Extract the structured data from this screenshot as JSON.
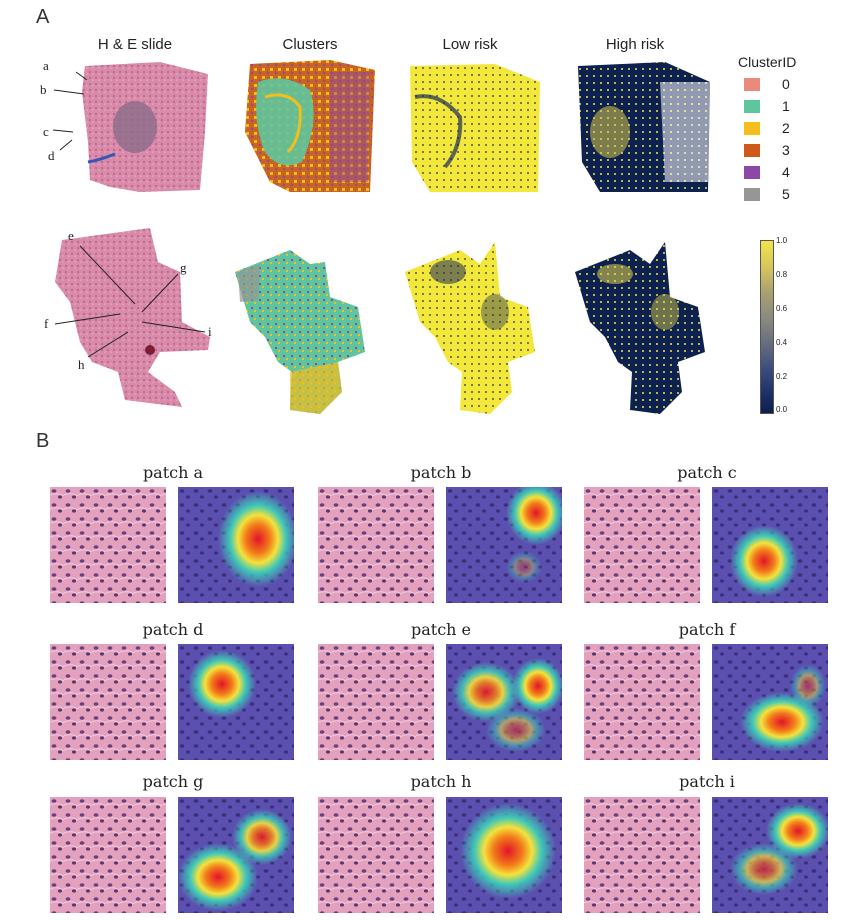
{
  "figure": {
    "panel_a_label": "A",
    "panel_b_label": "B",
    "column_titles": [
      "H & E slide",
      "Clusters",
      "Low risk",
      "High risk"
    ],
    "arrow_labels_top": [
      "a",
      "b",
      "c",
      "d"
    ],
    "arrow_labels_bottom": [
      "e",
      "f",
      "g",
      "h",
      "i"
    ],
    "legend": {
      "title": "ClusterID",
      "items": [
        {
          "id": "0",
          "color": "#e98a7d"
        },
        {
          "id": "1",
          "color": "#5fc59c"
        },
        {
          "id": "2",
          "color": "#f2bf1d"
        },
        {
          "id": "3",
          "color": "#d0591a"
        },
        {
          "id": "4",
          "color": "#8c48a8"
        },
        {
          "id": "5",
          "color": "#969696"
        }
      ]
    },
    "colorbar": {
      "ticks": [
        "1.0",
        "0.8",
        "0.6",
        "0.4",
        "0.2",
        "0.0"
      ]
    },
    "patches": [
      "patch a",
      "patch b",
      "patch c",
      "patch d",
      "patch e",
      "patch f",
      "patch g",
      "patch h",
      "patch i"
    ]
  }
}
